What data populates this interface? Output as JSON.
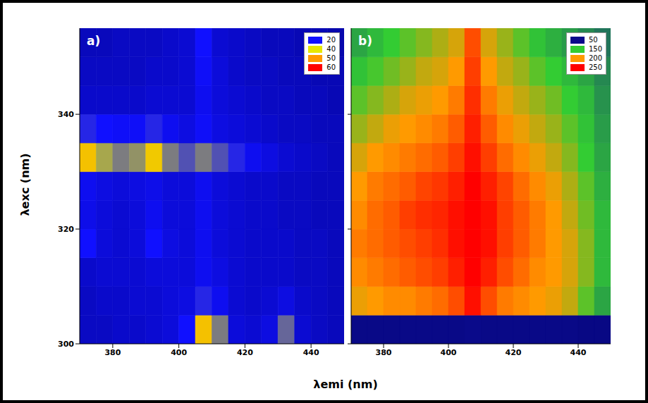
{
  "xlabel": "λemi (nm)",
  "ylabel": "λexc (nm)",
  "chart_data": [
    {
      "type": "heatmap",
      "panel": "a)",
      "xlim": [
        370,
        450
      ],
      "xticks": [
        380,
        400,
        420,
        440
      ],
      "ylim": [
        300,
        355
      ],
      "yticks": [
        300,
        320,
        340
      ],
      "x": [
        372.5,
        377.5,
        382.5,
        387.5,
        392.5,
        397.5,
        402.5,
        407.5,
        412.5,
        417.5,
        422.5,
        427.5,
        432.5,
        437.5,
        442.5,
        447.5
      ],
      "y": [
        302.5,
        307.5,
        312.5,
        317.5,
        322.5,
        327.5,
        332.5,
        337.5,
        342.5,
        347.5,
        352.5
      ],
      "cells": [
        [
          12,
          12,
          13,
          13,
          14,
          15,
          20,
          45,
          30,
          15,
          14,
          16,
          28,
          14,
          12,
          11
        ],
        [
          12,
          13,
          13,
          14,
          14,
          15,
          16,
          22,
          18,
          14,
          13,
          14,
          16,
          13,
          12,
          11
        ],
        [
          13,
          14,
          14,
          14,
          15,
          15,
          15,
          18,
          16,
          14,
          13,
          13,
          13,
          12,
          12,
          11
        ],
        [
          20,
          15,
          14,
          15,
          20,
          16,
          15,
          18,
          15,
          14,
          13,
          13,
          13,
          12,
          12,
          11
        ],
        [
          17,
          15,
          14,
          15,
          18,
          15,
          15,
          18,
          15,
          14,
          13,
          13,
          12,
          12,
          11,
          11
        ],
        [
          18,
          16,
          15,
          16,
          17,
          15,
          15,
          18,
          15,
          14,
          13,
          13,
          12,
          12,
          11,
          11
        ],
        [
          45,
          34,
          30,
          32,
          44,
          30,
          26,
          30,
          26,
          22,
          18,
          16,
          14,
          13,
          12,
          11
        ],
        [
          22,
          20,
          19,
          19,
          22,
          18,
          16,
          19,
          16,
          15,
          14,
          13,
          12,
          12,
          11,
          11
        ],
        [
          13,
          13,
          13,
          13,
          14,
          14,
          14,
          18,
          15,
          14,
          13,
          12,
          12,
          11,
          11,
          10
        ],
        [
          12,
          12,
          12,
          12,
          13,
          13,
          14,
          19,
          15,
          13,
          12,
          12,
          11,
          11,
          10,
          10
        ],
        [
          11,
          11,
          12,
          12,
          12,
          13,
          14,
          20,
          14,
          13,
          12,
          11,
          11,
          10,
          10,
          9
        ]
      ],
      "colorbar": {
        "range": [
          0,
          60
        ],
        "ticks": [
          20,
          40,
          50,
          60
        ],
        "colors": [
          "#1010ff",
          "#e8e800",
          "#ff9a00",
          "#ff0000"
        ]
      }
    },
    {
      "type": "heatmap",
      "panel": "b)",
      "tick_labels": "x",
      "xlim": [
        370,
        450
      ],
      "xticks": [
        380,
        400,
        420,
        440
      ],
      "ylim": [
        300,
        355
      ],
      "yticks": [
        300,
        320,
        340
      ],
      "x": [
        372.5,
        377.5,
        382.5,
        387.5,
        392.5,
        397.5,
        402.5,
        407.5,
        412.5,
        417.5,
        422.5,
        427.5,
        432.5,
        437.5,
        442.5,
        447.5
      ],
      "y": [
        302.5,
        307.5,
        312.5,
        317.5,
        322.5,
        327.5,
        332.5,
        337.5,
        342.5,
        347.5,
        352.5
      ],
      "cells": [
        [
          45,
          45,
          45,
          45,
          45,
          45,
          45,
          50,
          45,
          45,
          45,
          45,
          45,
          45,
          40,
          40
        ],
        [
          195,
          200,
          205,
          205,
          210,
          215,
          225,
          245,
          225,
          210,
          205,
          200,
          195,
          185,
          160,
          130
        ],
        [
          205,
          210,
          215,
          220,
          225,
          230,
          240,
          255,
          240,
          225,
          215,
          205,
          200,
          190,
          170,
          140
        ],
        [
          210,
          215,
          220,
          225,
          230,
          235,
          245,
          255,
          245,
          230,
          220,
          210,
          200,
          190,
          170,
          140
        ],
        [
          205,
          215,
          220,
          230,
          235,
          238,
          245,
          255,
          245,
          230,
          220,
          210,
          200,
          185,
          165,
          140
        ],
        [
          200,
          210,
          215,
          220,
          228,
          232,
          240,
          250,
          240,
          228,
          215,
          205,
          195,
          180,
          160,
          135
        ],
        [
          190,
          200,
          205,
          210,
          215,
          220,
          230,
          245,
          230,
          215,
          205,
          195,
          185,
          170,
          150,
          130
        ],
        [
          175,
          185,
          195,
          200,
          205,
          210,
          220,
          240,
          220,
          205,
          195,
          185,
          175,
          160,
          145,
          125
        ],
        [
          160,
          170,
          180,
          190,
          195,
          200,
          210,
          235,
          210,
          195,
          185,
          175,
          165,
          150,
          140,
          120
        ],
        [
          145,
          155,
          165,
          175,
          185,
          190,
          200,
          230,
          200,
          185,
          175,
          160,
          150,
          140,
          130,
          115
        ],
        [
          130,
          140,
          150,
          160,
          170,
          180,
          190,
          225,
          190,
          175,
          160,
          145,
          135,
          125,
          115,
          105
        ]
      ],
      "colorbar": {
        "range": [
          0,
          250
        ],
        "ticks": [
          50,
          150,
          200,
          250
        ],
        "colors": [
          "#0a0a8a",
          "#33cc33",
          "#ff9a00",
          "#ff0000"
        ]
      }
    }
  ]
}
